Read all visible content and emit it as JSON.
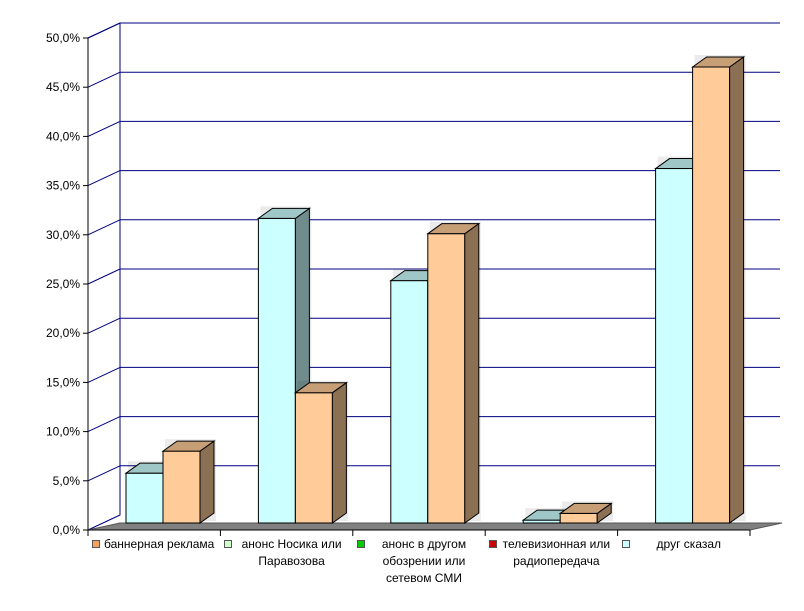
{
  "chart_data": {
    "type": "bar",
    "categories": [
      "баннерная реклама",
      "анонс Носика или Паравозова",
      "анонс в другом обозрении или сетевом СМИ",
      "телевизионная или радиопередача",
      "друг сказал"
    ],
    "category_lines": [
      [
        "баннерная реклама"
      ],
      [
        "анонс Носика или",
        "Паравозова"
      ],
      [
        "анонс в другом",
        "обозрении или",
        "сетевом СМИ"
      ],
      [
        "телевизионная или",
        "радиопередача"
      ],
      [
        "друг сказал"
      ]
    ],
    "category_swatch_colors": [
      "#f4a460",
      "#ccffcc",
      "#00cc00",
      "#cc0000",
      "#ccffff"
    ],
    "series": [
      {
        "values": [
          5.2,
          31.8,
          25.3,
          0.3,
          37.0
        ],
        "color": "#ccffff"
      },
      {
        "values": [
          7.5,
          13.6,
          30.2,
          1.0,
          47.6
        ],
        "color": "#ffcc99"
      }
    ],
    "ylim": [
      0,
      50
    ],
    "yticks": [
      "0,0%",
      "5,0%",
      "10,0%",
      "15,0%",
      "20,0%",
      "25,0%",
      "30,0%",
      "35,0%",
      "40,0%",
      "45,0%",
      "50,0%"
    ],
    "grid": true,
    "gridline_color": "#000080",
    "floor_color": "#808080"
  }
}
